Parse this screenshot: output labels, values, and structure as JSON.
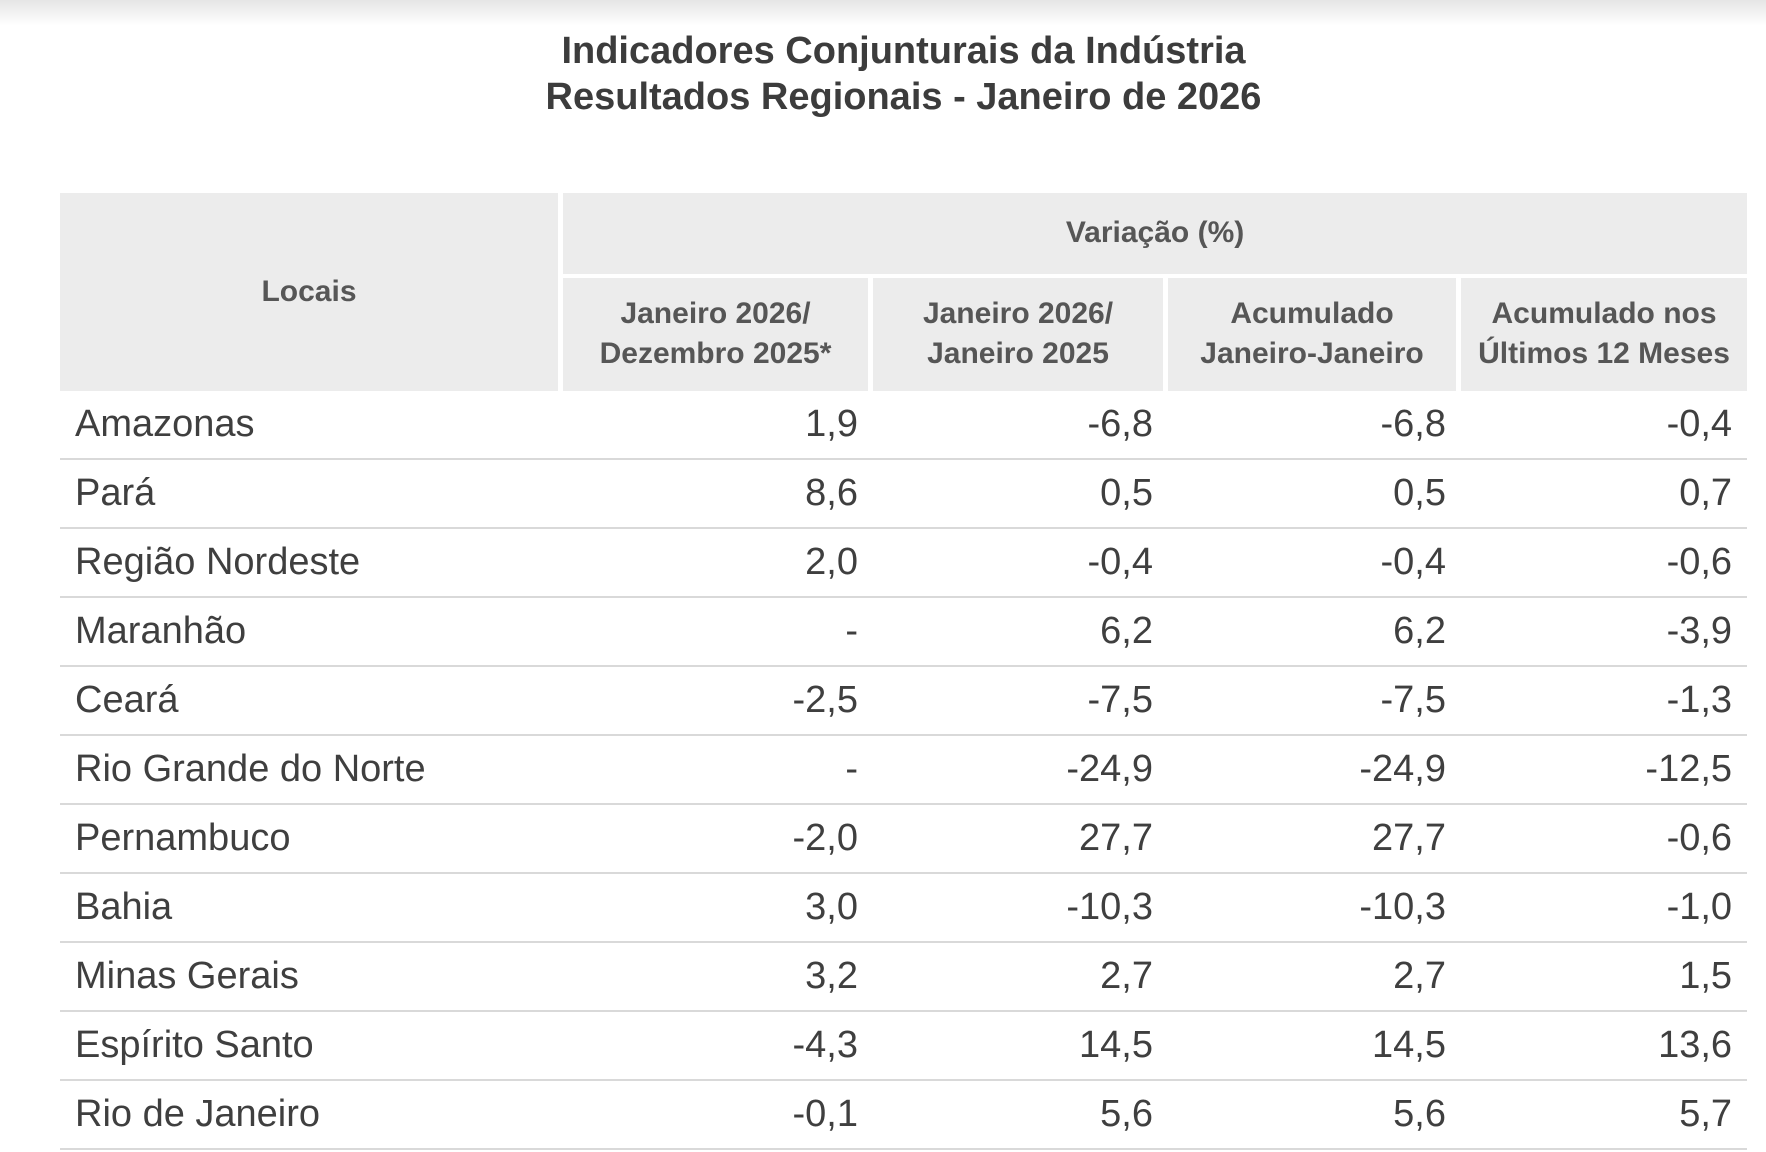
{
  "page": {
    "title_line1": "Indicadores Conjunturais da Indústria",
    "title_line2": "Resultados Regionais - Janeiro de 2026"
  },
  "colors": {
    "header_background": "#ececec",
    "header_text": "#565656",
    "body_text": "#3f3f3f",
    "row_separator": "#d9d9d9",
    "cell_gap": "#ffffff"
  },
  "chart_data": {
    "type": "table",
    "title": "Indicadores Conjunturais da Indústria",
    "subtitle": "Resultados Regionais - Janeiro de 2026",
    "row_header_label": "Locais",
    "group_header": "Variação (%)",
    "columns": [
      "Janeiro 2026/\nDezembro 2025*",
      "Janeiro 2026/\nJaneiro 2025",
      "Acumulado\nJaneiro-Janeiro",
      "Acumulado nos\nÚltimos 12 Meses"
    ],
    "rows": [
      {
        "local": "Amazonas",
        "values": [
          "1,9",
          "-6,8",
          "-6,8",
          "-0,4"
        ]
      },
      {
        "local": "Pará",
        "values": [
          "8,6",
          "0,5",
          "0,5",
          "0,7"
        ]
      },
      {
        "local": "Região Nordeste",
        "values": [
          "2,0",
          "-0,4",
          "-0,4",
          "-0,6"
        ]
      },
      {
        "local": "Maranhão",
        "values": [
          "-",
          "6,2",
          "6,2",
          "-3,9"
        ]
      },
      {
        "local": "Ceará",
        "values": [
          "-2,5",
          "-7,5",
          "-7,5",
          "-1,3"
        ]
      },
      {
        "local": "Rio Grande do Norte",
        "values": [
          "-",
          "-24,9",
          "-24,9",
          "-12,5"
        ]
      },
      {
        "local": "Pernambuco",
        "values": [
          "-2,0",
          "27,7",
          "27,7",
          "-0,6"
        ]
      },
      {
        "local": "Bahia",
        "values": [
          "3,0",
          "-10,3",
          "-10,3",
          "-1,0"
        ]
      },
      {
        "local": "Minas Gerais",
        "values": [
          "3,2",
          "2,7",
          "2,7",
          "1,5"
        ]
      },
      {
        "local": "Espírito Santo",
        "values": [
          "-4,3",
          "14,5",
          "14,5",
          "13,6"
        ]
      },
      {
        "local": "Rio de Janeiro",
        "values": [
          "-0,1",
          "5,6",
          "5,6",
          "5,7"
        ]
      }
    ]
  }
}
